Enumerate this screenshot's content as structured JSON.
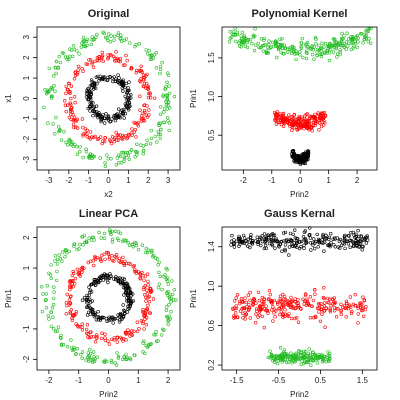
{
  "chart_data": [
    {
      "type": "scatter",
      "title": "Original",
      "xlabel": "x2",
      "ylabel": "x1",
      "xlim": [
        -3.6,
        3.6
      ],
      "ylim": [
        -3.5,
        3.5
      ],
      "xticks": [
        "-3",
        "-2",
        "-1",
        "0",
        "1",
        "2",
        "3"
      ],
      "yticks": [
        "-3",
        "-2",
        "-1",
        "0",
        "1",
        "2",
        "3"
      ],
      "grid": false,
      "series": [
        {
          "color": "#22bb22",
          "shape": "ring",
          "center": [
            0,
            0
          ],
          "radius": 3.0,
          "noise": 0.15,
          "count": 220
        },
        {
          "color": "#ff0000",
          "shape": "ring",
          "center": [
            0,
            0
          ],
          "radius": 2.0,
          "noise": 0.12,
          "count": 200
        },
        {
          "color": "#000000",
          "shape": "ring",
          "center": [
            0,
            0
          ],
          "radius": 1.0,
          "noise": 0.1,
          "count": 200
        }
      ]
    },
    {
      "type": "scatter",
      "title": "Polynomial Kernel",
      "xlabel": "Prin2",
      "ylabel": "Prin1",
      "xlim": [
        -2.75,
        2.7
      ],
      "ylim": [
        0.05,
        1.9
      ],
      "xticks": [
        "-2",
        "-1",
        "0",
        "1",
        "2"
      ],
      "yticks": [
        "0.5",
        "1.0",
        "1.5"
      ],
      "grid": false,
      "series": [
        {
          "color": "#22bb22",
          "shape": "band",
          "xrange": [
            -2.5,
            2.5
          ],
          "ybase": 1.6,
          "curve": 0.035,
          "noise": 0.06,
          "count": 260
        },
        {
          "color": "#ff0000",
          "shape": "band",
          "xrange": [
            -0.9,
            0.9
          ],
          "ybase": 0.65,
          "curve": 0.12,
          "noise": 0.05,
          "count": 220
        },
        {
          "color": "#000000",
          "shape": "band",
          "xrange": [
            -0.3,
            0.3
          ],
          "ybase": 0.18,
          "curve": 1.0,
          "noise": 0.03,
          "count": 150
        }
      ]
    },
    {
      "type": "scatter",
      "title": "Linear PCA",
      "xlabel": "Prin2",
      "ylabel": "Prin1",
      "xlim": [
        -2.4,
        2.4
      ],
      "ylim": [
        -2.35,
        2.35
      ],
      "xticks": [
        "-2",
        "-1",
        "0",
        "1",
        "2"
      ],
      "yticks": [
        "-2",
        "-1",
        "0",
        "1",
        "2"
      ],
      "grid": false,
      "series": [
        {
          "color": "#22bb22",
          "shape": "ring",
          "center": [
            0,
            0
          ],
          "radius": 2.05,
          "noise": 0.1,
          "count": 220
        },
        {
          "color": "#ff0000",
          "shape": "ring",
          "center": [
            0,
            0
          ],
          "radius": 1.35,
          "noise": 0.08,
          "count": 200
        },
        {
          "color": "#000000",
          "shape": "ring",
          "center": [
            0,
            0
          ],
          "radius": 0.7,
          "noise": 0.07,
          "count": 200
        }
      ]
    },
    {
      "type": "scatter",
      "title": "Gauss Kernal",
      "xlabel": "Prin2",
      "ylabel": "Prin1",
      "xlim": [
        -1.85,
        1.85
      ],
      "ylim": [
        0.15,
        1.6
      ],
      "xticks": [
        "-1.5",
        "-0.5",
        "0.5",
        "1.5"
      ],
      "yticks": [
        "0.2",
        "0.6",
        "1.0",
        "1.4"
      ],
      "grid": false,
      "series": [
        {
          "color": "#000000",
          "shape": "band",
          "xrange": [
            -1.65,
            1.65
          ],
          "ybase": 1.45,
          "curve": 0.0,
          "noise": 0.045,
          "count": 260
        },
        {
          "color": "#ff0000",
          "shape": "band",
          "xrange": [
            -1.6,
            1.6
          ],
          "ybase": 0.8,
          "curve": 0.0,
          "noise": 0.065,
          "count": 280
        },
        {
          "color": "#22bb22",
          "shape": "band",
          "xrange": [
            -0.75,
            0.75
          ],
          "ybase": 0.28,
          "curve": 0.0,
          "noise": 0.035,
          "count": 180
        }
      ]
    }
  ]
}
